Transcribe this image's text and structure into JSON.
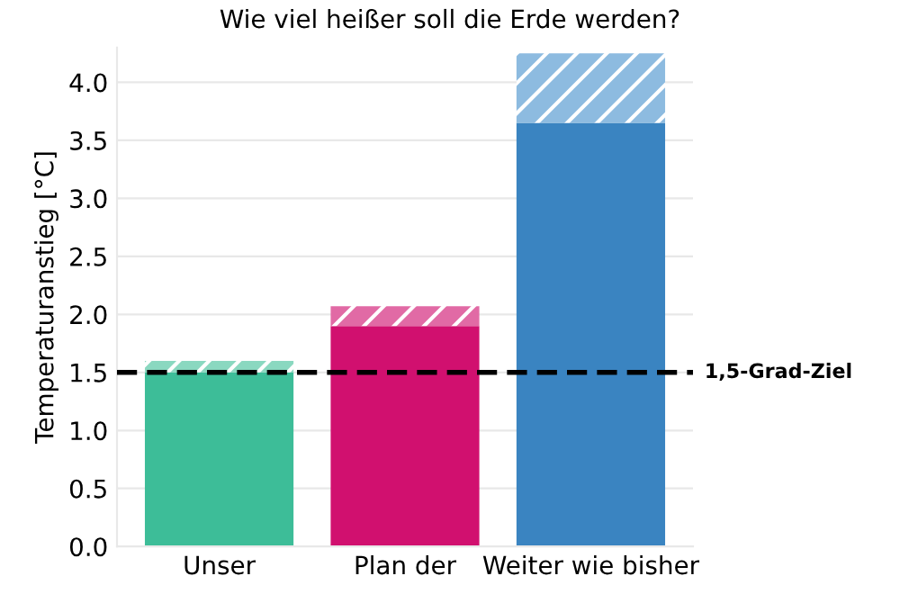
{
  "chart_data": {
    "type": "bar",
    "title": "Wie viel heißer soll die Erde werden?",
    "ylabel": "Temperaturanstieg [°C]",
    "categories": [
      "Unser",
      "Plan der",
      "Weiter wie bisher"
    ],
    "stacked": true,
    "series": [
      {
        "colors": [
          "#3dbd98",
          "#d1106f",
          "#3a84c1"
        ],
        "values": [
          1.5,
          1.9,
          3.65
        ]
      },
      {
        "colors": [
          "#8ad8c0",
          "#e16aa5",
          "#8dbbe0"
        ],
        "values": [
          0.1,
          0.17,
          0.6
        ]
      }
    ],
    "ylim": [
      0,
      4.3
    ],
    "yticks": [
      {
        "value": 0,
        "label": "0.0"
      },
      {
        "value": 0.5,
        "label": "0.5"
      },
      {
        "value": 1,
        "label": "1.0"
      },
      {
        "value": 1.5,
        "label": "1.5"
      },
      {
        "value": 2,
        "label": "2.0"
      },
      {
        "value": 2.5,
        "label": "2.5"
      },
      {
        "value": 3,
        "label": "3.0"
      },
      {
        "value": 3.5,
        "label": "3.5"
      },
      {
        "value": 4,
        "label": "4.0"
      }
    ],
    "grid": "y",
    "ref_lines": [
      {
        "axis": "y",
        "value": 1.5,
        "label": "1,5-Grad-Ziel",
        "color": "#000000",
        "line_style": "dashed"
      }
    ]
  }
}
